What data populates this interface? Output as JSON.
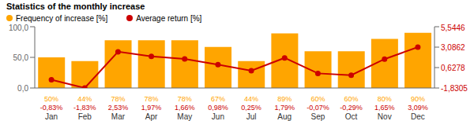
{
  "chart_data": {
    "type": "bar",
    "title": "Statistics of the monthly increase",
    "categories": [
      "Jan",
      "Feb",
      "Mar",
      "Apr",
      "May",
      "Jun",
      "Jul",
      "Aug",
      "Sep",
      "Oct",
      "Nov",
      "Dec"
    ],
    "series": [
      {
        "name": "Frequency of increase [%]",
        "type": "bar",
        "color": "#FFA500",
        "values": [
          50,
          44,
          78,
          78,
          78,
          67,
          44,
          89,
          60,
          60,
          80,
          90
        ],
        "value_labels": [
          "50%",
          "44%",
          "78%",
          "78%",
          "78%",
          "67%",
          "44%",
          "89%",
          "60%",
          "60%",
          "80%",
          "90%"
        ]
      },
      {
        "name": "Average return [%]",
        "type": "line",
        "color": "#CC0000",
        "axis": "y2",
        "marker": "circle",
        "values": [
          -0.83,
          -1.83,
          2.53,
          1.97,
          1.66,
          0.98,
          0.25,
          1.79,
          -0.07,
          -0.29,
          1.65,
          3.09
        ],
        "value_labels": [
          "-0,83%",
          "-1,83%",
          "2,53%",
          "1,97%",
          "1,66%",
          "0,98%",
          "0,25%",
          "1,79%",
          "-0,07%",
          "-0,29%",
          "1,65%",
          "3,09%"
        ]
      }
    ],
    "ylim": [
      0,
      100
    ],
    "yticks": [
      {
        "value": 0,
        "label": "0,0"
      },
      {
        "value": 50,
        "label": "50,0"
      },
      {
        "value": 100,
        "label": "100,0"
      }
    ],
    "y2lim": [
      -1.8305,
      5.5446
    ],
    "y2ticks": [
      {
        "value": -1.8305,
        "label": "-1,8305"
      },
      {
        "value": 0.6278,
        "label": "0,6278"
      },
      {
        "value": 3.0862,
        "label": "3,0862"
      },
      {
        "value": 5.5446,
        "label": "5,5446"
      }
    ],
    "data_labels": true,
    "legend": "upper left",
    "grid": false
  }
}
